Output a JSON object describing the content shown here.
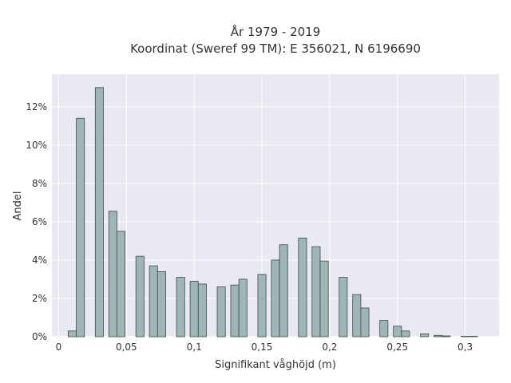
{
  "chart_data": {
    "type": "bar",
    "title": "År 1979 - 2019",
    "subtitle": "Koordinat (Sweref 99 TM): E 356021, N 6196690",
    "xlabel": "Signifikant våghöjd (m)",
    "ylabel": "Andel",
    "xlim": [
      -0.005,
      0.325
    ],
    "ylim": [
      0,
      0.137
    ],
    "grid": true,
    "x_ticks": [
      {
        "value": 0,
        "label": "0"
      },
      {
        "value": 0.05,
        "label": "0,05"
      },
      {
        "value": 0.1,
        "label": "0,1"
      },
      {
        "value": 0.15,
        "label": "0,15"
      },
      {
        "value": 0.2,
        "label": "0,2"
      },
      {
        "value": 0.25,
        "label": "0,25"
      },
      {
        "value": 0.3,
        "label": "0,3"
      }
    ],
    "y_ticks": [
      {
        "value": 0,
        "label": "0%"
      },
      {
        "value": 0.02,
        "label": "2%"
      },
      {
        "value": 0.04,
        "label": "4%"
      },
      {
        "value": 0.06,
        "label": "6%"
      },
      {
        "value": 0.08,
        "label": "8%"
      },
      {
        "value": 0.1,
        "label": "10%"
      },
      {
        "value": 0.12,
        "label": "12%"
      }
    ],
    "bar_width": 0.006,
    "bars": [
      {
        "x": 0.01,
        "y": 0.003
      },
      {
        "x": 0.016,
        "y": 0.114
      },
      {
        "x": 0.03,
        "y": 0.13
      },
      {
        "x": 0.04,
        "y": 0.0655
      },
      {
        "x": 0.046,
        "y": 0.055
      },
      {
        "x": 0.06,
        "y": 0.042
      },
      {
        "x": 0.07,
        "y": 0.037
      },
      {
        "x": 0.076,
        "y": 0.034
      },
      {
        "x": 0.09,
        "y": 0.031
      },
      {
        "x": 0.1,
        "y": 0.029
      },
      {
        "x": 0.106,
        "y": 0.0275
      },
      {
        "x": 0.12,
        "y": 0.026
      },
      {
        "x": 0.13,
        "y": 0.027
      },
      {
        "x": 0.136,
        "y": 0.03
      },
      {
        "x": 0.15,
        "y": 0.0325
      },
      {
        "x": 0.16,
        "y": 0.04
      },
      {
        "x": 0.166,
        "y": 0.048
      },
      {
        "x": 0.18,
        "y": 0.0515
      },
      {
        "x": 0.19,
        "y": 0.047
      },
      {
        "x": 0.196,
        "y": 0.0395
      },
      {
        "x": 0.21,
        "y": 0.031
      },
      {
        "x": 0.22,
        "y": 0.022
      },
      {
        "x": 0.226,
        "y": 0.015
      },
      {
        "x": 0.24,
        "y": 0.0085
      },
      {
        "x": 0.25,
        "y": 0.0055
      },
      {
        "x": 0.256,
        "y": 0.003
      },
      {
        "x": 0.27,
        "y": 0.0015
      },
      {
        "x": 0.28,
        "y": 0.0007
      },
      {
        "x": 0.286,
        "y": 0.0004
      },
      {
        "x": 0.3,
        "y": 0.0002
      },
      {
        "x": 0.306,
        "y": 0.0002
      }
    ]
  }
}
